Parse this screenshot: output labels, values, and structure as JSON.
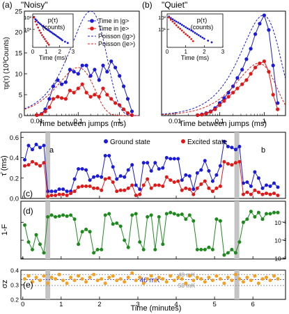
{
  "colors": {
    "ground": "#1a1ad8",
    "excited": "#e01818",
    "fidelity": "#1e8a1e",
    "sigma": "#f5a020",
    "shade": "#c4c4c4",
    "ref_line": "#888888",
    "ref_46": "#2020d0"
  },
  "chart_data": [
    {
      "id": "a",
      "type": "line",
      "panel_label": "(a)",
      "title": "\"Noisy\"",
      "xlabel": "Time between jumps (ms)",
      "ylabel": "τp(τ) (10³Counts)",
      "x_scale": "log",
      "xlim": [
        0.005,
        3
      ],
      "ylim": [
        0,
        25
      ],
      "x_ticks": [
        0.01,
        0.1,
        1
      ],
      "x_tick_labels": [
        "0.01",
        "0.1",
        "1"
      ],
      "y_ticks": [
        0,
        5,
        10,
        15,
        20,
        25
      ],
      "y_tick_labels": [
        "0",
        "5",
        "10",
        "15",
        "20",
        "25"
      ],
      "legend": [
        "Time in |g>",
        "Time in |e>",
        "Poisson (|g>)",
        "Poisson (|e>)"
      ],
      "series": [
        {
          "name": "Time in |g>",
          "style": "marker-line",
          "color": "ground",
          "x": [
            0.01,
            0.013,
            0.016,
            0.02,
            0.025,
            0.032,
            0.04,
            0.05,
            0.063,
            0.079,
            0.1,
            0.126,
            0.158,
            0.2,
            0.25,
            0.32,
            0.4,
            0.5,
            0.63,
            0.79,
            1.0,
            1.26,
            1.58,
            2.0
          ],
          "y": [
            0.1,
            0.4,
            1.5,
            4.0,
            7.0,
            8.5,
            7.5,
            8.0,
            11.0,
            10.5,
            10.0,
            12.0,
            12.0,
            9.5,
            11.0,
            8.5,
            12.0,
            10.5,
            13.0,
            11.5,
            9.5,
            7.0,
            4.0,
            1.0
          ]
        },
        {
          "name": "Time in |e>",
          "style": "marker-line",
          "color": "excited",
          "x": [
            0.01,
            0.013,
            0.016,
            0.02,
            0.025,
            0.032,
            0.04,
            0.05,
            0.063,
            0.079,
            0.1,
            0.126,
            0.158,
            0.2,
            0.25,
            0.32,
            0.4,
            0.5,
            0.63,
            0.79,
            1.0,
            1.26,
            1.58,
            2.0
          ],
          "y": [
            0.1,
            0.3,
            1.0,
            2.0,
            4.0,
            4.5,
            4.2,
            4.0,
            6.0,
            5.5,
            6.5,
            7.5,
            5.5,
            4.5,
            5.0,
            4.5,
            6.5,
            5.0,
            4.0,
            3.0,
            2.5,
            1.5,
            0.6,
            0.1
          ]
        },
        {
          "name": "Poisson (|g>)",
          "style": "dashed",
          "color": "ground",
          "mean_ms": 0.2,
          "peak": 25
        },
        {
          "name": "Poisson (|e>)",
          "style": "dashed",
          "color": "excited",
          "mean_ms": 0.1,
          "peak": 11.5
        }
      ],
      "inset": {
        "ylabel_line1": "p(τ)",
        "ylabel_line2": "(counts)",
        "xlabel": "Time (ms)",
        "xlim": [
          0,
          3
        ],
        "ylim_log": [
          0.3,
          200
        ],
        "x_ticks": [
          0,
          1,
          2,
          3
        ],
        "x_tick_labels": [
          "0",
          "1",
          "2",
          "3"
        ],
        "y_ticks": [
          10,
          100
        ],
        "y_tick_labels": [
          "10¹",
          "10²"
        ],
        "series": [
          {
            "color": "ground",
            "x": [
              0.1,
              0.2,
              0.3,
              0.4,
              0.5,
              0.6,
              0.7,
              0.8,
              0.9,
              1.0,
              1.1,
              1.2,
              1.3,
              1.4,
              1.5,
              1.6,
              1.7,
              1.8,
              1.9,
              2.0,
              2.1,
              2.2,
              2.4,
              2.6
            ],
            "y": [
              110,
              70,
              55,
              40,
              32,
              26,
              20,
              17,
              14,
              11,
              9,
              8,
              6.5,
              5.5,
              4.5,
              3.8,
              3.2,
              2.6,
              2.2,
              1.8,
              1.5,
              1.2,
              0.9,
              0.7
            ]
          },
          {
            "color": "excited",
            "x": [
              0.1,
              0.2,
              0.3,
              0.4,
              0.5,
              0.6,
              0.7,
              0.8,
              0.9,
              1.0,
              1.1,
              1.2
            ],
            "y": [
              100,
              45,
              25,
              14,
              8,
              5,
              3.2,
              2.2,
              1.5,
              1.0,
              0.7,
              0.5
            ]
          }
        ]
      }
    },
    {
      "id": "b",
      "type": "line",
      "panel_label": "(b)",
      "title": "\"Quiet\"",
      "xlabel": "Time between jumps (ms)",
      "ylabel": "",
      "x_scale": "log",
      "xlim": [
        0.005,
        3
      ],
      "ylim": [
        0,
        25
      ],
      "x_ticks": [
        0.01,
        0.1,
        1
      ],
      "x_tick_labels": [
        "0.01",
        "0.1",
        "1"
      ],
      "series": [
        {
          "name": "Time in |g>",
          "style": "marker-line",
          "color": "ground",
          "x": [
            0.032,
            0.04,
            0.05,
            0.063,
            0.079,
            0.1,
            0.126,
            0.158,
            0.2,
            0.25,
            0.32,
            0.4,
            0.5,
            0.63,
            0.79,
            1.0,
            1.26,
            1.58,
            2.0
          ],
          "y": [
            0.1,
            0.3,
            0.6,
            1.0,
            1.8,
            3.0,
            4.2,
            5.5,
            7.0,
            9.0,
            11.0,
            13.5,
            16.0,
            19.5,
            22.0,
            24.0,
            20.5,
            12.0,
            3.0
          ]
        },
        {
          "name": "Time in |e>",
          "style": "marker-line",
          "color": "excited",
          "x": [
            0.032,
            0.04,
            0.05,
            0.063,
            0.079,
            0.1,
            0.126,
            0.158,
            0.2,
            0.25,
            0.32,
            0.4,
            0.5,
            0.63,
            0.79,
            1.0,
            1.26,
            1.58,
            2.0
          ],
          "y": [
            0.1,
            0.2,
            0.5,
            0.9,
            1.5,
            2.5,
            3.5,
            4.5,
            5.5,
            6.5,
            7.5,
            8.5,
            10.0,
            11.5,
            12.5,
            13.0,
            10.5,
            5.0,
            1.5
          ]
        },
        {
          "name": "Poisson (|g>)",
          "style": "dashed",
          "color": "ground",
          "mean_ms": 0.95,
          "peak": 24
        },
        {
          "name": "Poisson (|e>)",
          "style": "dashed",
          "color": "excited",
          "mean_ms": 0.75,
          "peak": 12.5
        }
      ],
      "inset": {
        "ylabel_line1": "p(τ)",
        "ylabel_line2": "(counts)",
        "xlabel": "Time (ms)",
        "xlim": [
          0,
          3
        ],
        "ylim_log": [
          0.3,
          200
        ],
        "x_ticks": [
          0,
          1,
          2,
          3
        ],
        "x_tick_labels": [
          "0",
          "1",
          "2",
          "3"
        ],
        "y_ticks": [
          10,
          100
        ],
        "y_tick_labels": [
          "10¹",
          "10²"
        ],
        "series": [
          {
            "color": "ground",
            "x": [
              0.1,
              0.2,
              0.3,
              0.4,
              0.5,
              0.6,
              0.7,
              0.8,
              0.9,
              1.0,
              1.1,
              1.2,
              1.3,
              1.4,
              1.5,
              1.6,
              1.7,
              1.8,
              1.9,
              2.0,
              2.2,
              2.4
            ],
            "y": [
              120,
              90,
              70,
              55,
              45,
              37,
              30,
              24,
              19,
              15,
              12,
              10,
              8,
              6.5,
              5,
              4,
              3.2,
              2.5,
              2,
              1.6,
              1.1,
              0.8
            ]
          },
          {
            "color": "excited",
            "x": [
              0.1,
              0.2,
              0.3,
              0.4,
              0.5,
              0.6,
              0.7,
              0.8,
              0.9,
              1.0,
              1.1,
              1.2,
              1.3,
              1.4
            ],
            "y": [
              100,
              65,
              45,
              32,
              22,
              15,
              11,
              8,
              5.5,
              4,
              3,
              2.2,
              1.5,
              1.0
            ]
          }
        ]
      }
    },
    {
      "id": "c",
      "type": "line",
      "panel_label": "(c)",
      "ylabel": "τ̄ (ms)",
      "xlim": [
        -0.05,
        6.85
      ],
      "ylim": [
        0,
        0.65
      ],
      "y_ticks": [
        0,
        0.2,
        0.4,
        0.6
      ],
      "y_tick_labels": [
        "0.0",
        "0.2",
        "0.4",
        "0.6"
      ],
      "legend": [
        "Ground state",
        "Excited state"
      ],
      "annotations": [
        "a",
        "b"
      ],
      "series": [
        {
          "name": "Ground state",
          "color": "ground",
          "x_start": 0.05,
          "x_step": 0.1,
          "y": [
            0.38,
            0.52,
            0.48,
            0.53,
            0.5,
            0.52,
            0.07,
            0.07,
            0.07,
            0.09,
            0.09,
            0.07,
            0.07,
            0.19,
            0.29,
            0.29,
            0.28,
            0.18,
            0.21,
            0.22,
            0.21,
            0.42,
            0.42,
            0.31,
            0.19,
            0.22,
            0.21,
            0.28,
            0.33,
            0.13,
            0.09,
            0.35,
            0.35,
            0.27,
            0.35,
            0.29,
            0.3,
            0.4,
            0.39,
            0.39,
            0.39,
            0.18,
            0.23,
            0.22,
            0.09,
            0.25,
            0.28,
            0.37,
            0.27,
            0.17,
            0.23,
            0.32,
            0.56,
            0.51,
            0.5,
            0.48,
            0.51,
            0.15,
            0.16,
            0.12,
            0.26,
            0.2,
            0.1,
            0.13,
            0.12,
            0.15,
            0.11
          ]
        },
        {
          "name": "Excited state",
          "color": "excited",
          "x_start": 0.05,
          "x_step": 0.1,
          "y": [
            0.32,
            0.33,
            0.36,
            0.34,
            0.32,
            0.35,
            0.02,
            0.03,
            0.03,
            0.04,
            0.04,
            0.03,
            0.05,
            0.07,
            0.11,
            0.12,
            0.12,
            0.12,
            0.1,
            0.1,
            0.08,
            0.19,
            0.2,
            0.16,
            0.07,
            0.08,
            0.08,
            0.1,
            0.13,
            0.03,
            0.04,
            0.13,
            0.19,
            0.1,
            0.13,
            0.13,
            0.12,
            0.21,
            0.18,
            0.16,
            0.17,
            0.08,
            0.1,
            0.09,
            0.04,
            0.1,
            0.14,
            0.17,
            0.1,
            0.07,
            0.1,
            0.12,
            0.36,
            0.34,
            0.33,
            0.35,
            0.36,
            0.04,
            0.06,
            0.04,
            0.08,
            0.06,
            0.04,
            0.05,
            0.04,
            0.05,
            0.03
          ]
        }
      ]
    },
    {
      "id": "d",
      "type": "line",
      "panel_label": "(d)",
      "ylabel": "1-F",
      "y_scale": "log",
      "xlim": [
        -0.05,
        6.85
      ],
      "ylim_log": [
        0.0009,
        1.5
      ],
      "y_ticks": [
        0.001,
        0.01,
        0.1
      ],
      "y_tick_labels": [
        "10⁻³",
        "10⁻²",
        "10⁻¹"
      ],
      "series": [
        {
          "name": "1-F",
          "color": "fidelity",
          "x_start": 0.05,
          "x_step": 0.1,
          "y": [
            0.07,
            0.008,
            0.003,
            0.02,
            0.006,
            0.002,
            0.2,
            0.25,
            0.2,
            0.22,
            0.25,
            0.22,
            0.25,
            0.15,
            0.006,
            0.03,
            0.04,
            0.03,
            0.002,
            0.003,
            0.003,
            0.25,
            0.3,
            0.08,
            0.09,
            0.06,
            0.01,
            0.004,
            0.25,
            0.3,
            0.008,
            0.003,
            0.2,
            0.25,
            0.003,
            0.2,
            0.006,
            0.3,
            0.35,
            0.3,
            0.25,
            0.28,
            0.15,
            0.25,
            0.12,
            0.003,
            0.003,
            0.003,
            0.004,
            0.003,
            0.15,
            0.12,
            0.0015,
            0.002,
            0.003,
            0.002,
            0.008,
            0.1,
            0.15,
            0.4,
            0.2,
            0.35,
            0.15,
            0.3,
            0.3,
            0.35,
            0.35
          ]
        }
      ]
    },
    {
      "id": "e",
      "type": "scatter",
      "panel_label": "(e)",
      "ylabel": "σz",
      "xlabel": "Time (minutes)",
      "xlim": [
        -0.05,
        6.85
      ],
      "ylim": [
        0.2,
        0.4
      ],
      "y_ticks": [
        0.2,
        0.3,
        0.4
      ],
      "y_tick_labels": [
        "0.2",
        "0.3",
        "0.4"
      ],
      "x_ticks": [
        0,
        1,
        2,
        3,
        4,
        5,
        6
      ],
      "x_tick_labels": [
        "0",
        "1",
        "2",
        "3",
        "4",
        "5",
        "6"
      ],
      "reference_lines": [
        {
          "label": "40 mK",
          "y": 0.37,
          "color": "ref_line"
        },
        {
          "label": "46 mK",
          "y": 0.335,
          "color": "ref_46"
        },
        {
          "label": "50 mK",
          "y": 0.295,
          "color": "ref_line"
        }
      ],
      "series": [
        {
          "name": "σz",
          "color": "sigma",
          "x_start": 0.05,
          "x_step": 0.1,
          "y": [
            0.34,
            0.36,
            0.32,
            0.35,
            0.33,
            0.36,
            0.31,
            0.35,
            0.34,
            0.37,
            0.33,
            0.31,
            0.35,
            0.33,
            0.36,
            0.34,
            0.32,
            0.35,
            0.37,
            0.33,
            0.34,
            0.31,
            0.35,
            0.36,
            0.33,
            0.34,
            0.32,
            0.35,
            0.38,
            0.33,
            0.35,
            0.31,
            0.34,
            0.36,
            0.33,
            0.35,
            0.34,
            0.32,
            0.36,
            0.33,
            0.35,
            0.34,
            0.31,
            0.36,
            0.33,
            0.35,
            0.34,
            0.32,
            0.35,
            0.33,
            0.36,
            0.34,
            0.31,
            0.35,
            0.33,
            0.37,
            0.34,
            0.32,
            0.35,
            0.33,
            0.36,
            0.31,
            0.34,
            0.35,
            0.33,
            0.36,
            0.34
          ]
        }
      ]
    }
  ]
}
